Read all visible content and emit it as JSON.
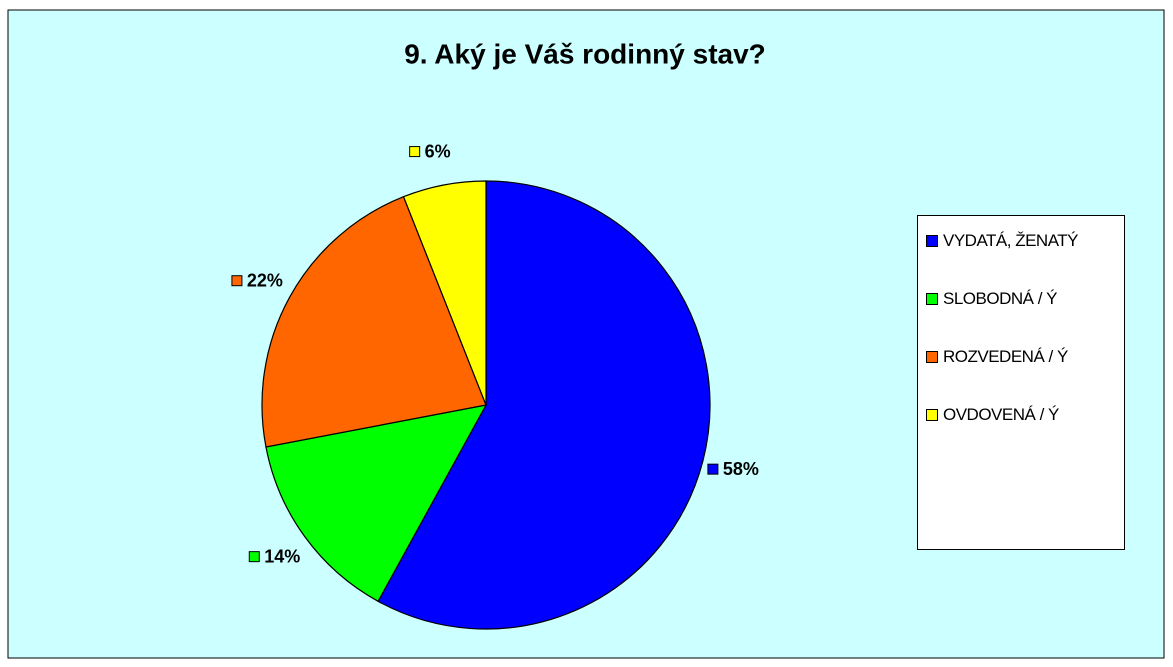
{
  "chart_data": {
    "type": "pie",
    "title": "9.  Aký je Váš rodinný stav?",
    "categories": [
      "VYDATÁ, ŽENATÝ",
      "SLOBODNÁ / Ý",
      "ROZVEDENÁ / Ý",
      "OVDOVENÁ / Ý"
    ],
    "values": [
      58,
      14,
      22,
      6
    ],
    "value_labels": [
      "58%",
      "14%",
      "22%",
      "6%"
    ],
    "colors": [
      "#0000ff",
      "#00ff00",
      "#ff6600",
      "#ffff00"
    ],
    "legend": "right"
  }
}
